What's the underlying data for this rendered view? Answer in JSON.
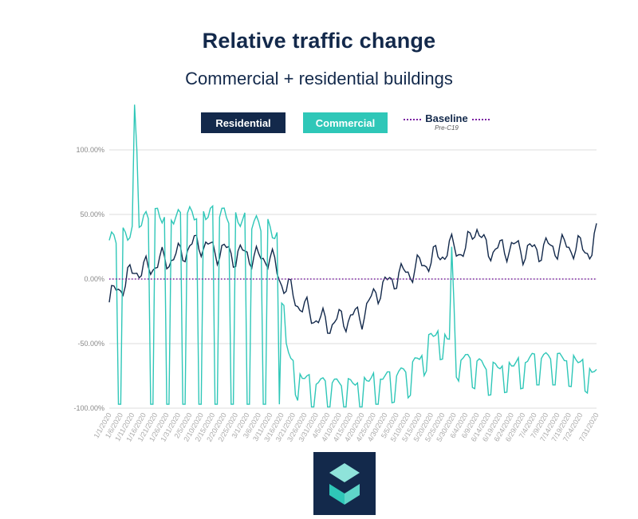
{
  "title": "Relative traffic change",
  "subtitle": "Commercial + residential buildings",
  "legend": {
    "residential": "Residential",
    "commercial": "Commercial",
    "baseline": "Baseline",
    "baseline_sub": "Pre-C19"
  },
  "colors": {
    "residential": "#13294b",
    "commercial": "#2fc7b8",
    "baseline": "#7b1fa2",
    "grid": "#dddddd"
  },
  "chart_data": {
    "type": "line",
    "x_start": "1/1/2020",
    "x_end": "7/31/2020",
    "xticks": [
      "1/1/2020",
      "1/6/2020",
      "1/11/2020",
      "1/16/2020",
      "1/21/2020",
      "1/26/2020",
      "1/31/2020",
      "2/5/2020",
      "2/10/2020",
      "2/15/2020",
      "2/20/2020",
      "2/25/2020",
      "3/1/2020",
      "3/6/2020",
      "3/11/2020",
      "3/16/2020",
      "3/21/2020",
      "3/26/2020",
      "3/31/2020",
      "4/5/2020",
      "4/10/2020",
      "4/15/2020",
      "4/20/2020",
      "4/25/2020",
      "4/30/2020",
      "5/5/2020",
      "5/10/2020",
      "5/15/2020",
      "5/20/2020",
      "5/25/2020",
      "5/30/2020",
      "6/4/2020",
      "6/9/2020",
      "6/14/2020",
      "6/19/2020",
      "6/24/2020",
      "6/29/2020",
      "7/4/2020",
      "7/9/2020",
      "7/14/2020",
      "7/19/2020",
      "7/24/2020",
      "7/31/2020"
    ],
    "yticks": [
      "100.00%",
      "50.00%",
      "0.00%",
      "-50.00%",
      "-100.00%"
    ],
    "ylim": [
      -100,
      100
    ],
    "baseline_value": 0,
    "residential_anchors": [
      [
        0,
        -18
      ],
      [
        3,
        -8
      ],
      [
        7,
        -3
      ],
      [
        11,
        8
      ],
      [
        15,
        6
      ],
      [
        20,
        12
      ],
      [
        25,
        15
      ],
      [
        30,
        18
      ],
      [
        35,
        25
      ],
      [
        40,
        28
      ],
      [
        45,
        22
      ],
      [
        50,
        22
      ],
      [
        55,
        18
      ],
      [
        60,
        20
      ],
      [
        65,
        15
      ],
      [
        70,
        18
      ],
      [
        73,
        5
      ],
      [
        75,
        -2
      ],
      [
        78,
        -8
      ],
      [
        82,
        -18
      ],
      [
        86,
        -25
      ],
      [
        90,
        -30
      ],
      [
        95,
        -35
      ],
      [
        100,
        -32
      ],
      [
        105,
        -30
      ],
      [
        110,
        -28
      ],
      [
        113,
        -20
      ],
      [
        116,
        -10
      ],
      [
        120,
        -5
      ],
      [
        125,
        2
      ],
      [
        130,
        5
      ],
      [
        135,
        10
      ],
      [
        140,
        15
      ],
      [
        145,
        20
      ],
      [
        150,
        25
      ],
      [
        155,
        20
      ],
      [
        158,
        38
      ],
      [
        160,
        40
      ],
      [
        163,
        25
      ],
      [
        168,
        22
      ],
      [
        175,
        25
      ],
      [
        180,
        22
      ],
      [
        185,
        22
      ],
      [
        190,
        24
      ],
      [
        195,
        25
      ],
      [
        200,
        25
      ],
      [
        205,
        24
      ],
      [
        210,
        22
      ],
      [
        212,
        33
      ]
    ],
    "residential_amplitude": 12,
    "commercial_weekday_anchors": [
      [
        0,
        30
      ],
      [
        8,
        35
      ],
      [
        14,
        45
      ],
      [
        20,
        50
      ],
      [
        30,
        48
      ],
      [
        40,
        52
      ],
      [
        50,
        50
      ],
      [
        60,
        45
      ],
      [
        70,
        40
      ],
      [
        74,
        30
      ],
      [
        77,
        -50
      ],
      [
        82,
        -72
      ],
      [
        88,
        -78
      ],
      [
        95,
        -80
      ],
      [
        100,
        -80
      ],
      [
        105,
        -80
      ],
      [
        110,
        -78
      ],
      [
        115,
        -75
      ],
      [
        120,
        -75
      ],
      [
        125,
        -73
      ],
      [
        130,
        -70
      ],
      [
        135,
        -60
      ],
      [
        140,
        -42
      ],
      [
        145,
        -40
      ],
      [
        148,
        -45
      ],
      [
        153,
        -60
      ],
      [
        158,
        -62
      ],
      [
        165,
        -68
      ],
      [
        175,
        -65
      ],
      [
        185,
        -60
      ],
      [
        195,
        -60
      ],
      [
        205,
        -62
      ],
      [
        212,
        -72
      ]
    ],
    "commercial_weekend_offset": 22,
    "commercial_spikes": [
      [
        11,
        135
      ],
      [
        12,
        100
      ],
      [
        13,
        40
      ],
      [
        149,
        25
      ],
      [
        150,
        -20
      ]
    ]
  }
}
